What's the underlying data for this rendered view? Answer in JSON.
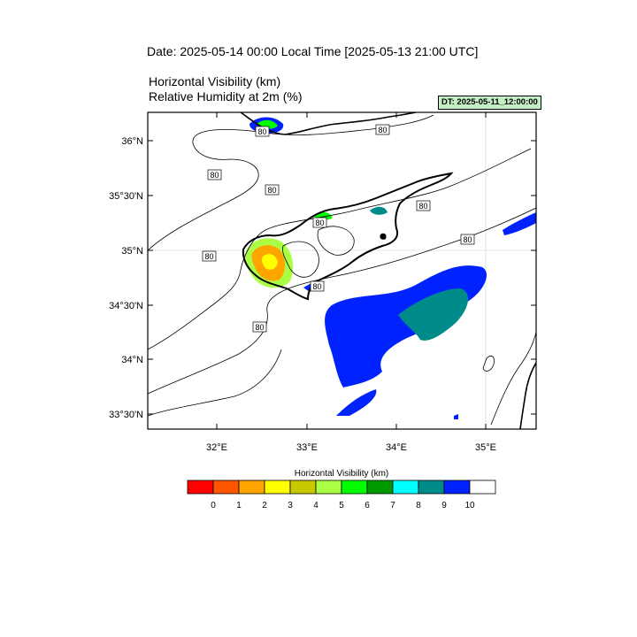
{
  "header": {
    "date_title": "Date: 2025-05-14  00:00 Local Time [2025-05-13  21:00 UTC]",
    "var_title_1": "Horizontal Visibility   (km)",
    "var_title_2": "Relative Humidity at 2m   (%)",
    "dt_badge": "DT: 2025-05-11_12:00:00"
  },
  "map": {
    "lat_ticks": [
      "36°N",
      "35°30'N",
      "35°N",
      "34°30'N",
      "34°N",
      "33°30'N"
    ],
    "lon_ticks": [
      "32°E",
      "33°E",
      "34°E",
      "35°E"
    ],
    "contour_labels": [
      "80",
      "80",
      "80",
      "80",
      "80",
      "80",
      "80",
      "80",
      "80",
      "80"
    ]
  },
  "colorbar": {
    "title": "Horizontal Visibility  (km)",
    "labels": [
      "0",
      "1",
      "2",
      "3",
      "4",
      "5",
      "6",
      "7",
      "8",
      "9",
      "10"
    ],
    "colors": [
      "#ff0000",
      "#ff5500",
      "#ffa500",
      "#ffff00",
      "#c8c800",
      "#aaff44",
      "#00ff00",
      "#009a00",
      "#00ffff",
      "#008b8b",
      "#0022ff",
      "#ffffff"
    ]
  }
}
